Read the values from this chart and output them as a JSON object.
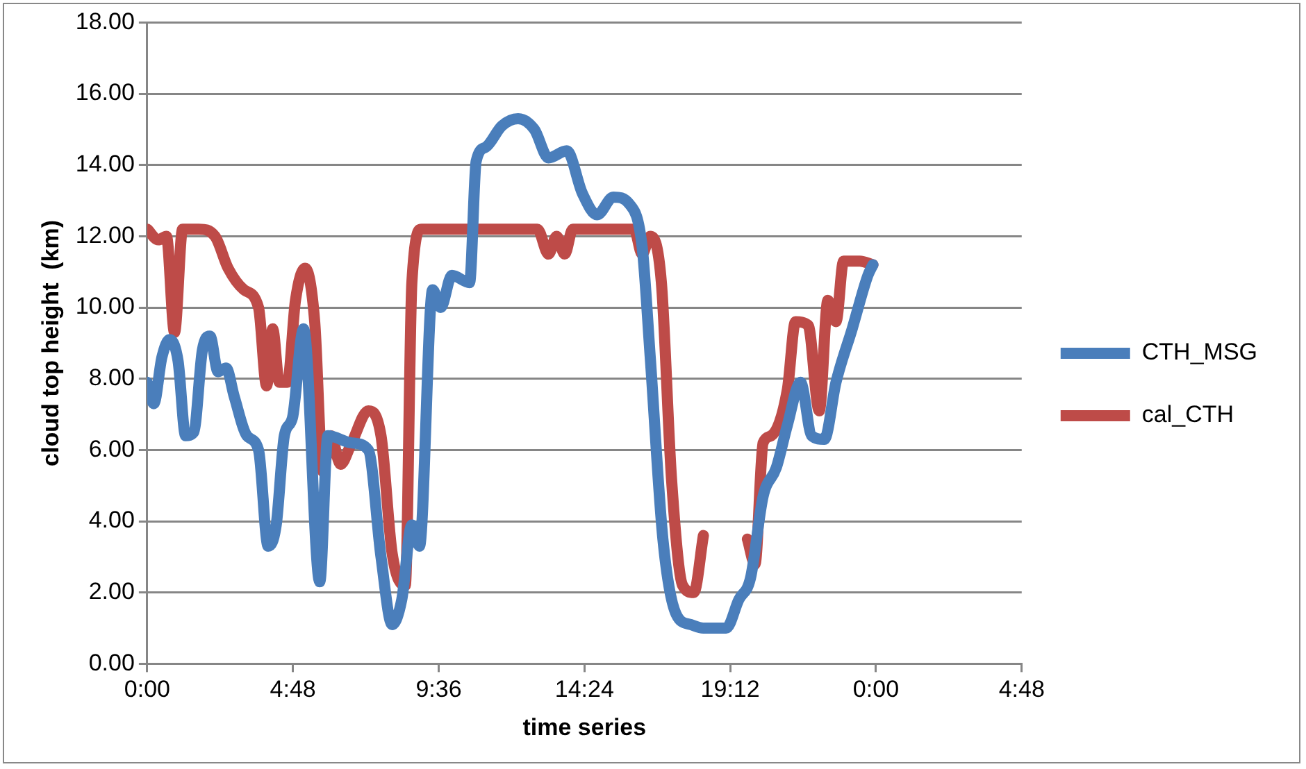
{
  "chart_data": {
    "type": "line",
    "xlabel": "time series",
    "ylabel": "cloud top height  (km)",
    "xlim": [
      "2000-01-01T00:00",
      "2000-01-02T04:48"
    ],
    "xticks": [
      {
        "value": "2000-01-01T00:00",
        "label": "0:00"
      },
      {
        "value": "2000-01-01T04:48",
        "label": "4:48"
      },
      {
        "value": "2000-01-01T09:36",
        "label": "9:36"
      },
      {
        "value": "2000-01-01T14:24",
        "label": "14:24"
      },
      {
        "value": "2000-01-01T19:12",
        "label": "19:12"
      },
      {
        "value": "2000-01-02T00:00",
        "label": "0:00"
      },
      {
        "value": "2000-01-02T04:48",
        "label": "4:48"
      }
    ],
    "ylim": [
      0,
      18
    ],
    "yticks": [
      {
        "value": 0,
        "label": "0.00"
      },
      {
        "value": 2,
        "label": "2.00"
      },
      {
        "value": 4,
        "label": "4.00"
      },
      {
        "value": 6,
        "label": "6.00"
      },
      {
        "value": 8,
        "label": "8.00"
      },
      {
        "value": 10,
        "label": "10.00"
      },
      {
        "value": 12,
        "label": "12.00"
      },
      {
        "value": 14,
        "label": "14.00"
      },
      {
        "value": 16,
        "label": "16.00"
      },
      {
        "value": 18,
        "label": "18.00"
      }
    ],
    "grid": "y",
    "legend": "right",
    "marker": "none",
    "line_style": "solid",
    "series": [
      {
        "name": "CTH_MSG",
        "color": "#4a7ebb",
        "x": [
          "2000-01-01T00:00",
          "2000-01-01T00:13",
          "2000-01-01T00:29",
          "2000-01-01T00:44",
          "2000-01-01T01:01",
          "2000-01-01T01:16",
          "2000-01-01T01:32",
          "2000-01-01T01:49",
          "2000-01-01T02:04",
          "2000-01-01T02:20",
          "2000-01-01T02:36",
          "2000-01-01T02:52",
          "2000-01-01T03:17",
          "2000-01-01T03:40",
          "2000-01-01T03:59",
          "2000-01-01T04:15",
          "2000-01-01T04:31",
          "2000-01-01T04:47",
          "2000-01-01T05:09",
          "2000-01-01T05:41",
          "2000-01-01T05:57",
          "2000-01-01T06:44",
          "2000-01-01T07:17",
          "2000-01-01T07:42",
          "2000-01-01T08:04",
          "2000-01-01T08:23",
          "2000-01-01T08:43",
          "2000-01-01T08:58",
          "2000-01-01T09:24",
          "2000-01-01T09:40",
          "2000-01-01T10:02",
          "2000-01-01T10:37",
          "2000-01-01T10:50",
          "2000-01-01T11:09",
          "2000-01-01T11:41",
          "2000-01-01T12:13",
          "2000-01-01T12:45",
          "2000-01-01T13:13",
          "2000-01-01T13:49",
          "2000-01-01T14:20",
          "2000-01-01T14:49",
          "2000-01-01T15:21",
          "2000-01-01T15:53",
          "2000-01-01T16:18",
          "2000-01-01T16:34",
          "2000-01-01T16:59",
          "2000-01-01T17:25",
          "2000-01-01T17:54",
          "2000-01-01T18:19",
          "2000-01-01T19:04",
          "2000-01-01T19:29",
          "2000-01-01T19:52",
          "2000-01-01T20:17",
          "2000-01-01T20:43",
          "2000-01-01T21:05",
          "2000-01-01T21:31",
          "2000-01-01T21:53",
          "2000-01-01T22:18",
          "2000-01-01T22:41",
          "2000-01-01T23:13",
          "2000-01-01T23:44",
          "2000-01-01T23:54"
        ],
        "values": [
          7.9,
          7.3,
          8.6,
          9.1,
          8.5,
          6.4,
          6.5,
          8.8,
          9.2,
          8.2,
          8.3,
          7.5,
          6.4,
          6.0,
          3.3,
          3.9,
          6.4,
          6.9,
          9.4,
          2.3,
          6.4,
          6.2,
          6.0,
          3.0,
          1.1,
          1.8,
          3.9,
          3.3,
          10.5,
          10.0,
          10.9,
          10.7,
          14.1,
          14.5,
          15.1,
          15.3,
          15.0,
          14.2,
          14.4,
          13.2,
          12.6,
          13.1,
          12.9,
          11.7,
          8.6,
          3.5,
          1.4,
          1.1,
          1.0,
          1.0,
          1.8,
          2.4,
          4.7,
          5.5,
          6.7,
          7.9,
          6.4,
          6.3,
          7.9,
          9.4,
          10.9,
          11.2
        ]
      },
      {
        "name": "cal_CTH",
        "color": "#be4b48",
        "x": [
          "2000-01-01T00:00",
          "2000-01-01T00:22",
          "2000-01-01T00:38",
          "2000-01-01T00:54",
          "2000-01-01T01:10",
          "2000-01-01T01:42",
          "2000-01-01T02:14",
          "2000-01-01T02:40",
          "2000-01-01T03:11",
          "2000-01-01T03:40",
          "2000-01-01T03:56",
          "2000-01-01T04:08",
          "2000-01-01T04:21",
          "2000-01-01T04:37",
          "2000-01-01T04:53",
          "2000-01-01T05:12",
          "2000-01-01T05:31",
          "2000-01-01T05:47",
          "2000-01-01T06:03",
          "2000-01-01T06:22",
          "2000-01-01T06:44",
          "2000-01-01T07:17",
          "2000-01-01T07:42",
          "2000-01-01T08:04",
          "2000-01-01T08:30",
          "2000-01-01T08:43",
          "2000-01-01T09:02",
          "2000-01-01T12:51",
          "2000-01-01T13:13",
          "2000-01-01T13:29",
          "2000-01-01T13:45",
          "2000-01-01T14:01",
          "2000-01-01T16:02",
          "2000-01-01T16:18",
          "2000-01-01T16:34",
          "2000-01-01T16:56",
          "2000-01-01T17:16",
          "2000-01-01T17:38",
          "2000-01-01T18:00",
          "2000-01-01T18:19",
          "2000-01-01T19:00",
          "2000-01-01T19:46",
          "2000-01-01T20:01",
          "2000-01-01T20:17",
          "2000-01-01T20:33",
          "2000-01-01T21:05",
          "2000-01-01T21:21",
          "2000-01-01T21:46",
          "2000-01-01T22:08",
          "2000-01-01T22:25",
          "2000-01-01T22:41",
          "2000-01-01T22:56",
          "2000-01-01T23:28",
          "2000-01-01T23:54"
        ],
        "values": [
          12.2,
          11.9,
          12.0,
          9.3,
          12.2,
          12.2,
          12.0,
          11.1,
          10.5,
          10.0,
          7.8,
          9.4,
          7.9,
          7.9,
          10.2,
          11.1,
          9.6,
          5.4,
          6.4,
          5.6,
          6.2,
          7.1,
          6.4,
          3.1,
          2.2,
          10.7,
          12.2,
          12.2,
          11.5,
          12.0,
          11.5,
          12.2,
          12.2,
          11.5,
          12.0,
          10.7,
          5.2,
          2.2,
          2.0,
          3.6,
          null,
          3.5,
          2.8,
          6.2,
          6.4,
          7.7,
          9.6,
          9.5,
          7.1,
          10.2,
          9.6,
          11.3,
          11.3,
          11.2
        ]
      }
    ]
  }
}
